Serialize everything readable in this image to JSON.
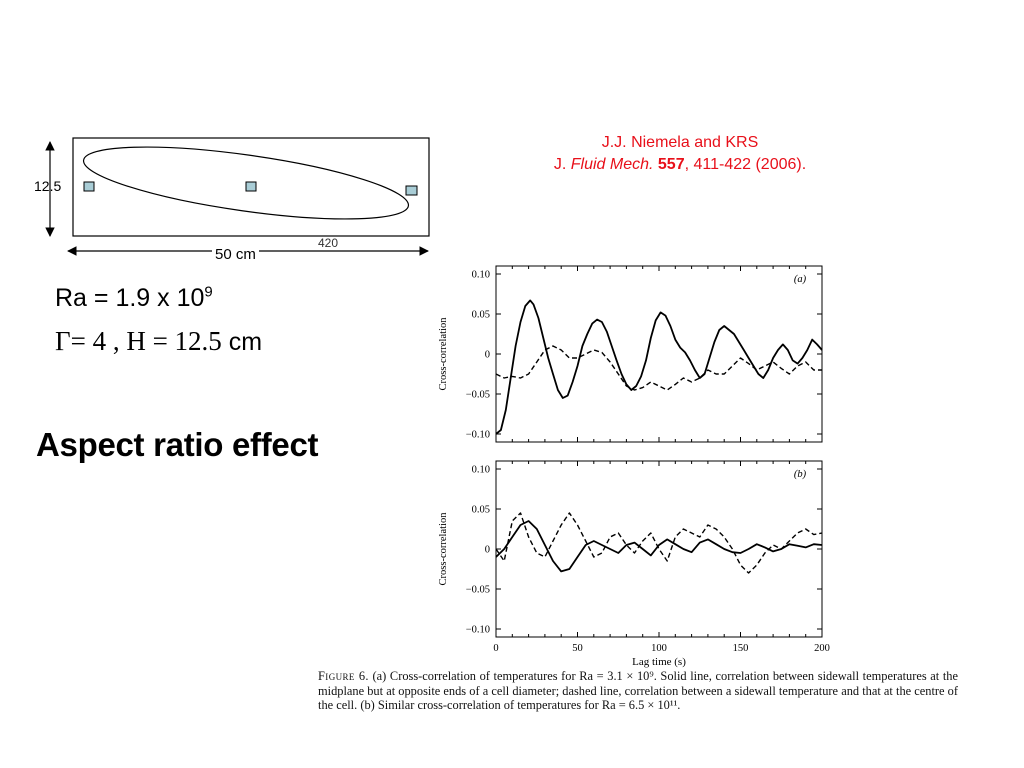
{
  "citation": {
    "authors": "J.J. Niemela and KRS",
    "journal_prefix": "J.",
    "journal_name": "Fluid Mech.",
    "volume": "557",
    "pages_year": ", 411-422 (2006)."
  },
  "schematic": {
    "height_label": "12.5",
    "width_label": "50 cm",
    "scan_label": "420"
  },
  "params": {
    "ra_text": "Ra = 1.9 x 10",
    "ra_exponent": "9",
    "gamma_text": "Γ= 4 ,  H = 12.5",
    "gamma_unit": " cm"
  },
  "slide_title": "Aspect ratio effect",
  "figure": {
    "caption_figure_word": "Figure 6.",
    "caption_text": " (a) Cross-correlation of temperatures for Ra = 3.1 × 10⁹. Solid line, correlation between sidewall temperatures at the midplane but at opposite ends of a cell diameter; dashed line, correlation between a sidewall temperature and that at the centre of the cell. (b) Similar cross-correlation of temperatures for Ra = 6.5 × 10¹¹."
  },
  "chart_data": [
    {
      "type": "line",
      "panel_label": "(a)",
      "ylabel": "Cross-correlation",
      "xlim": [
        0,
        200
      ],
      "ylim": [
        -0.11,
        0.11
      ],
      "yticks": [
        0.1,
        0.05,
        0,
        -0.05,
        -0.1
      ],
      "ytick_labels": [
        "0.10",
        "0.05",
        "0",
        "−0.05",
        "−0.10"
      ],
      "series": [
        {
          "style": "solid",
          "x": [
            0,
            3,
            6,
            9,
            12,
            15,
            18,
            21,
            23,
            26,
            29,
            32,
            35,
            38,
            41,
            44,
            47,
            50,
            53,
            56,
            59,
            62,
            65,
            68,
            71,
            74,
            77,
            80,
            83,
            86,
            89,
            92,
            95,
            98,
            101,
            104,
            107,
            110,
            113,
            116,
            119,
            122,
            125,
            128,
            131,
            134,
            137,
            140,
            143,
            146,
            149,
            152,
            155,
            158,
            161,
            164,
            167,
            170,
            173,
            176,
            179,
            182,
            185,
            188,
            191,
            194,
            197,
            200
          ],
          "y": [
            -0.1,
            -0.095,
            -0.07,
            -0.03,
            0.01,
            0.04,
            0.06,
            0.067,
            0.062,
            0.045,
            0.02,
            -0.005,
            -0.025,
            -0.045,
            -0.055,
            -0.052,
            -0.035,
            -0.015,
            0.01,
            0.025,
            0.038,
            0.043,
            0.04,
            0.028,
            0.01,
            -0.008,
            -0.025,
            -0.038,
            -0.045,
            -0.04,
            -0.028,
            -0.008,
            0.02,
            0.042,
            0.052,
            0.048,
            0.035,
            0.018,
            0.008,
            0.002,
            -0.008,
            -0.02,
            -0.03,
            -0.025,
            -0.005,
            0.015,
            0.03,
            0.035,
            0.03,
            0.025,
            0.015,
            0.005,
            -0.005,
            -0.015,
            -0.025,
            -0.03,
            -0.02,
            -0.005,
            0.005,
            0.012,
            0.005,
            -0.008,
            -0.012,
            -0.005,
            0.005,
            0.018,
            0.012,
            0.005
          ]
        },
        {
          "style": "dashed",
          "x": [
            0,
            5,
            10,
            15,
            20,
            25,
            30,
            35,
            40,
            45,
            50,
            55,
            60,
            65,
            70,
            75,
            80,
            85,
            90,
            95,
            100,
            105,
            110,
            115,
            120,
            125,
            130,
            135,
            140,
            145,
            150,
            155,
            160,
            165,
            170,
            175,
            180,
            185,
            190,
            195,
            200
          ],
          "y": [
            -0.025,
            -0.03,
            -0.028,
            -0.03,
            -0.025,
            -0.01,
            0.005,
            0.01,
            0.005,
            -0.005,
            -0.005,
            0.0,
            0.005,
            0.002,
            -0.01,
            -0.025,
            -0.04,
            -0.045,
            -0.042,
            -0.035,
            -0.04,
            -0.045,
            -0.038,
            -0.03,
            -0.035,
            -0.03,
            -0.02,
            -0.025,
            -0.025,
            -0.015,
            -0.005,
            -0.012,
            -0.02,
            -0.015,
            -0.01,
            -0.018,
            -0.025,
            -0.015,
            -0.01,
            -0.02,
            -0.02
          ]
        }
      ]
    },
    {
      "type": "line",
      "panel_label": "(b)",
      "ylabel": "Cross-correlation",
      "xlabel": "Lag time (s)",
      "xlim": [
        0,
        200
      ],
      "xticks": [
        0,
        50,
        100,
        150,
        200
      ],
      "ylim": [
        -0.11,
        0.11
      ],
      "yticks": [
        0.1,
        0.05,
        0,
        -0.05,
        -0.1
      ],
      "ytick_labels": [
        "0.10",
        "0.05",
        "0",
        "−0.05",
        "−0.10"
      ],
      "series": [
        {
          "style": "solid",
          "x": [
            0,
            5,
            10,
            15,
            20,
            25,
            30,
            35,
            40,
            45,
            50,
            55,
            60,
            65,
            70,
            75,
            80,
            85,
            90,
            95,
            100,
            105,
            110,
            115,
            120,
            125,
            130,
            135,
            140,
            145,
            150,
            155,
            160,
            165,
            170,
            175,
            180,
            185,
            190,
            195,
            200
          ],
          "y": [
            -0.01,
            0.0,
            0.015,
            0.03,
            0.035,
            0.025,
            0.005,
            -0.015,
            -0.028,
            -0.025,
            -0.01,
            0.005,
            0.01,
            0.005,
            0.0,
            -0.005,
            0.005,
            0.008,
            0.0,
            -0.008,
            0.005,
            0.012,
            0.006,
            0.0,
            -0.004,
            0.008,
            0.012,
            0.006,
            0.0,
            -0.004,
            -0.005,
            0.0,
            0.006,
            0.002,
            -0.003,
            0.0,
            0.006,
            0.004,
            0.002,
            0.006,
            0.005
          ]
        },
        {
          "style": "dashed",
          "x": [
            0,
            5,
            10,
            15,
            20,
            25,
            30,
            35,
            40,
            45,
            50,
            55,
            60,
            65,
            70,
            75,
            80,
            85,
            90,
            95,
            100,
            105,
            110,
            115,
            120,
            125,
            130,
            135,
            140,
            145,
            150,
            155,
            160,
            165,
            170,
            175,
            180,
            185,
            190,
            195,
            200
          ],
          "y": [
            0.0,
            -0.015,
            0.035,
            0.045,
            0.015,
            -0.005,
            -0.01,
            0.01,
            0.03,
            0.045,
            0.03,
            0.01,
            -0.01,
            -0.005,
            0.015,
            0.02,
            0.005,
            -0.005,
            0.01,
            0.02,
            0.0,
            -0.015,
            0.015,
            0.025,
            0.02,
            0.015,
            0.03,
            0.025,
            0.015,
            0.0,
            -0.02,
            -0.03,
            -0.02,
            -0.005,
            0.005,
            0.0,
            0.01,
            0.02,
            0.025,
            0.018,
            0.02
          ]
        }
      ]
    }
  ]
}
